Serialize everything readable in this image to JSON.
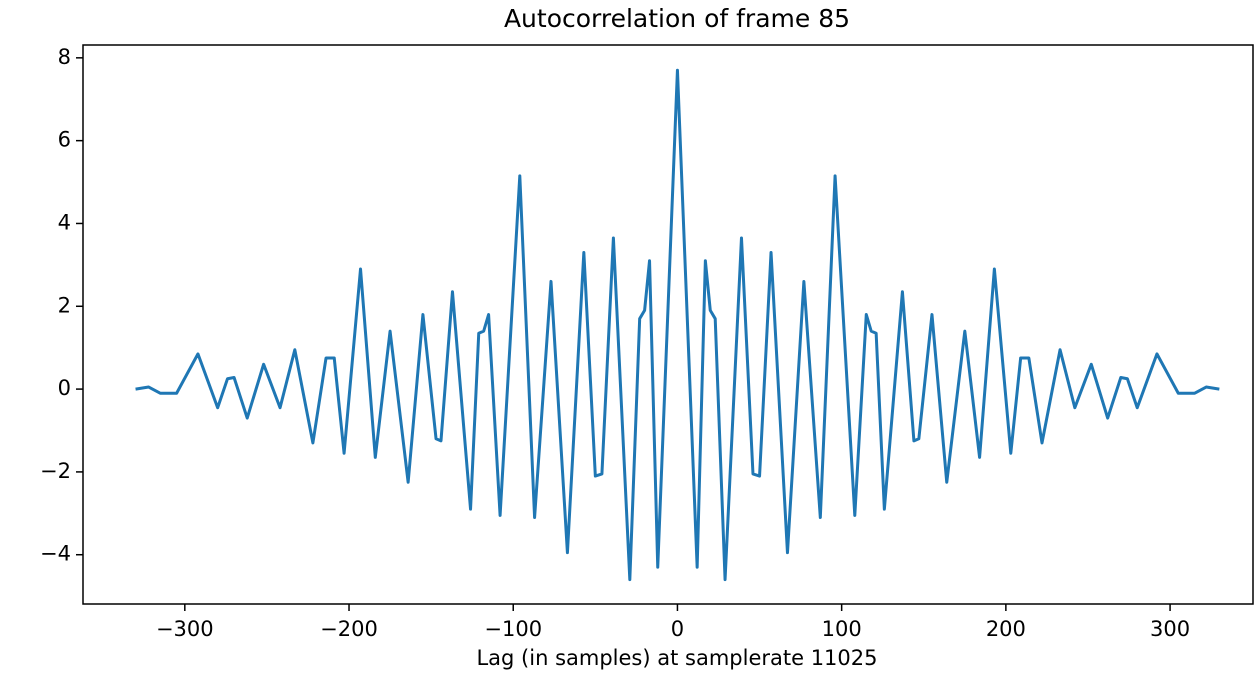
{
  "chart_data": {
    "type": "line",
    "title": "Autocorrelation of frame 85",
    "xlabel": "Lag (in samples) at samplerate 11025",
    "x": [
      -330,
      -322,
      -315,
      -305,
      -292,
      -280,
      -274,
      -270,
      -262,
      -252,
      -242,
      -233,
      -222,
      -214,
      -209,
      -203,
      -193,
      -184,
      -175,
      -164,
      -155,
      -147,
      -144,
      -137,
      -126,
      -121,
      -118,
      -115,
      -108,
      -96,
      -87,
      -77,
      -67,
      -57,
      -50,
      -46,
      -39,
      -29,
      -23,
      -20,
      -17,
      -12,
      0,
      12,
      17,
      20,
      23,
      29,
      39,
      46,
      50,
      57,
      67,
      77,
      87,
      96,
      108,
      115,
      118,
      121,
      126,
      137,
      144,
      147,
      155,
      164,
      175,
      184,
      193,
      203,
      209,
      214,
      222,
      233,
      242,
      252,
      262,
      270,
      274,
      280,
      292,
      305,
      315,
      322,
      330
    ],
    "series": [
      {
        "name": "autocorrelation",
        "color": "#1f77b4",
        "values": [
          0,
          0.05,
          -0.1,
          -0.1,
          0.85,
          -0.45,
          0.25,
          0.28,
          -0.7,
          0.6,
          -0.45,
          0.95,
          -1.3,
          0.75,
          0.75,
          -1.55,
          2.9,
          -1.65,
          1.4,
          -2.25,
          1.8,
          -1.2,
          -1.25,
          2.35,
          -2.9,
          1.35,
          1.4,
          1.8,
          -3.05,
          5.15,
          -3.1,
          2.6,
          -3.95,
          3.3,
          -2.1,
          -2.05,
          3.65,
          -4.6,
          1.7,
          1.9,
          3.1,
          -4.3,
          7.7,
          -4.3,
          3.1,
          1.9,
          1.7,
          -4.6,
          3.65,
          -2.05,
          -2.1,
          3.3,
          -3.95,
          2.6,
          -3.1,
          5.15,
          -3.05,
          1.8,
          1.4,
          1.35,
          -2.9,
          2.35,
          -1.25,
          -1.2,
          1.8,
          -2.25,
          1.4,
          -1.65,
          2.9,
          -1.55,
          0.75,
          0.75,
          -1.3,
          0.95,
          -0.45,
          0.6,
          -0.7,
          0.28,
          0.25,
          -0.45,
          0.85,
          -0.1,
          -0.1,
          0.05,
          0
        ]
      }
    ],
    "xlim": [
      -362,
      350.5
    ],
    "ylim": [
      -5.19,
      8.31
    ],
    "xticks": [
      {
        "value": -300,
        "label": "−300"
      },
      {
        "value": -200,
        "label": "−200"
      },
      {
        "value": -100,
        "label": "−100"
      },
      0,
      100,
      200,
      300
    ],
    "yticks": [
      {
        "value": -4,
        "label": "−4"
      },
      {
        "value": -2,
        "label": "−2"
      },
      0,
      2,
      4,
      6,
      8
    ]
  }
}
